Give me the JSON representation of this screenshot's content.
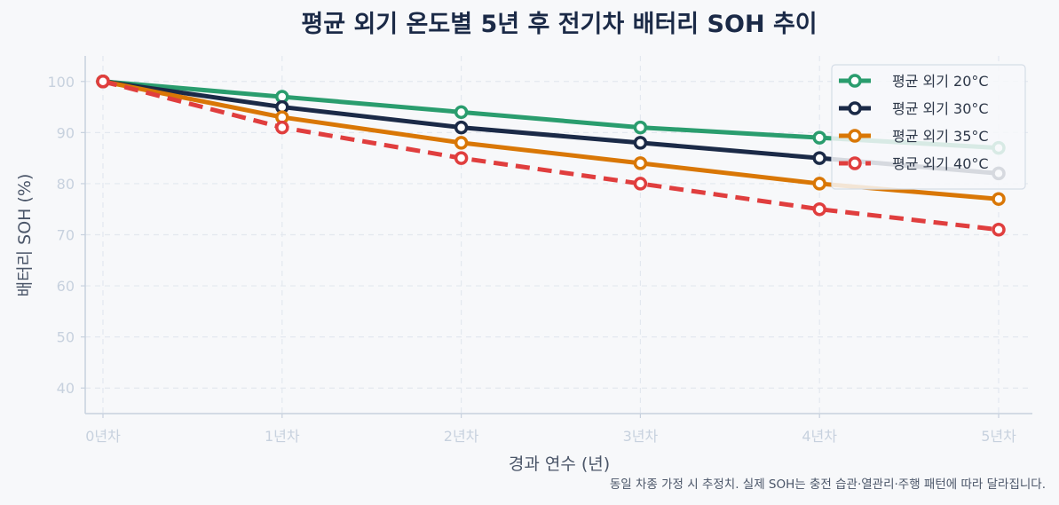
{
  "chart_data": {
    "type": "line",
    "title": "평균 외기 온도별 5년 후 전기차 배터리 SOH 추이",
    "xlabel": "경과 연수 (년)",
    "ylabel": "배터리 SOH (%)",
    "categories": [
      "0년차",
      "1년차",
      "2년차",
      "3년차",
      "4년차",
      "5년차"
    ],
    "yticks": [
      40,
      50,
      60,
      70,
      80,
      90,
      100
    ],
    "ylim": [
      35,
      105
    ],
    "grid": true,
    "legend_position": "top-right",
    "series": [
      {
        "name": "평균 외기 20°C",
        "values": [
          100,
          97,
          94,
          91,
          89,
          87
        ],
        "color": "#2a9d6e",
        "dash": "solid"
      },
      {
        "name": "평균 외기 30°C",
        "values": [
          100,
          95,
          91,
          88,
          85,
          82
        ],
        "color": "#1b2a47",
        "dash": "solid"
      },
      {
        "name": "평균 외기 35°C",
        "values": [
          100,
          93,
          88,
          84,
          80,
          77
        ],
        "color": "#d97706",
        "dash": "solid"
      },
      {
        "name": "평균 외기 40°C",
        "values": [
          100,
          91,
          85,
          80,
          75,
          71
        ],
        "color": "#e03e3e",
        "dash": "dashed"
      }
    ],
    "footnote": "동일 차종 가정 시 추정치. 실제 SOH는 충전 습관·열관리·주행 패턴에 따라 달라집니다."
  }
}
